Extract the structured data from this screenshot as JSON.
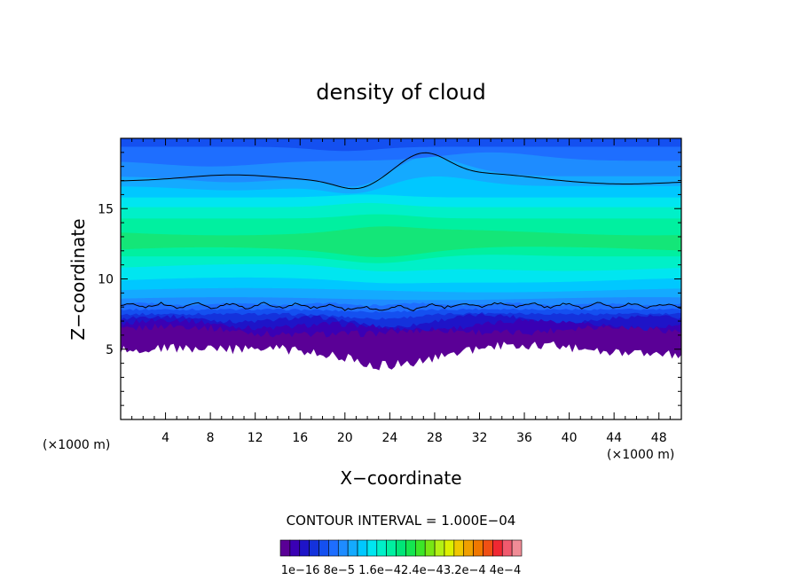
{
  "chart_data": {
    "type": "contour",
    "title": "density of cloud",
    "xlabel": "X−coordinate",
    "ylabel": "Z−coordinate",
    "x_unit": "(×1000 m)",
    "z_unit": "(×1000 m)",
    "xlim": [
      0,
      50
    ],
    "ylim": [
      0,
      20
    ],
    "x_ticks": [
      4,
      8,
      12,
      16,
      20,
      24,
      28,
      32,
      36,
      40,
      44,
      48
    ],
    "y_ticks": [
      5,
      10,
      15
    ],
    "x_tick_labels": [
      "4",
      "8",
      "12",
      "16",
      "20",
      "24",
      "28",
      "32",
      "36",
      "40",
      "44",
      "48"
    ],
    "y_tick_labels": [
      "5",
      "10",
      "15"
    ],
    "contour_interval_text": "CONTOUR INTERVAL = 1.000E−04",
    "colorbar": {
      "labels_text": "1e−16  8e−5  1.6e−42.4e−43.2e−4  4e−4",
      "colors": [
        "#5a0096",
        "#3a00b4",
        "#1e14c8",
        "#1432dc",
        "#1450f0",
        "#1e6eff",
        "#1e8cff",
        "#14aaff",
        "#00c8ff",
        "#00e6f0",
        "#00f0c8",
        "#00f0a0",
        "#00e678",
        "#14e650",
        "#3ce628",
        "#78e614",
        "#b4f014",
        "#dcf000",
        "#f0c800",
        "#f0a000",
        "#f07800",
        "#f05014",
        "#f02832",
        "#f05a6e",
        "#f08c96"
      ]
    }
  }
}
